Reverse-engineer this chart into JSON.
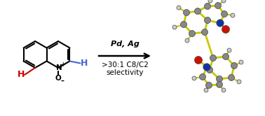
{
  "arrow_text_line1": "Pd, Ag",
  "arrow_text_line2": ">30:1 C8/C2",
  "arrow_text_line3": "selectivity",
  "background_color": "#ffffff",
  "arrow_color": "#000000",
  "arrow_text_color": "#000000",
  "red_color": "#cc0000",
  "blue_color": "#4488cc",
  "bond_color": "#000000",
  "mol3d_bond_color": "#c8c800",
  "mol3d_C_color": "#888888",
  "mol3d_N_color": "#1133aa",
  "mol3d_O_color": "#cc1100",
  "mol3d_H_color": "#cccccc",
  "figsize": [
    3.78,
    1.66
  ],
  "dpi": 100
}
